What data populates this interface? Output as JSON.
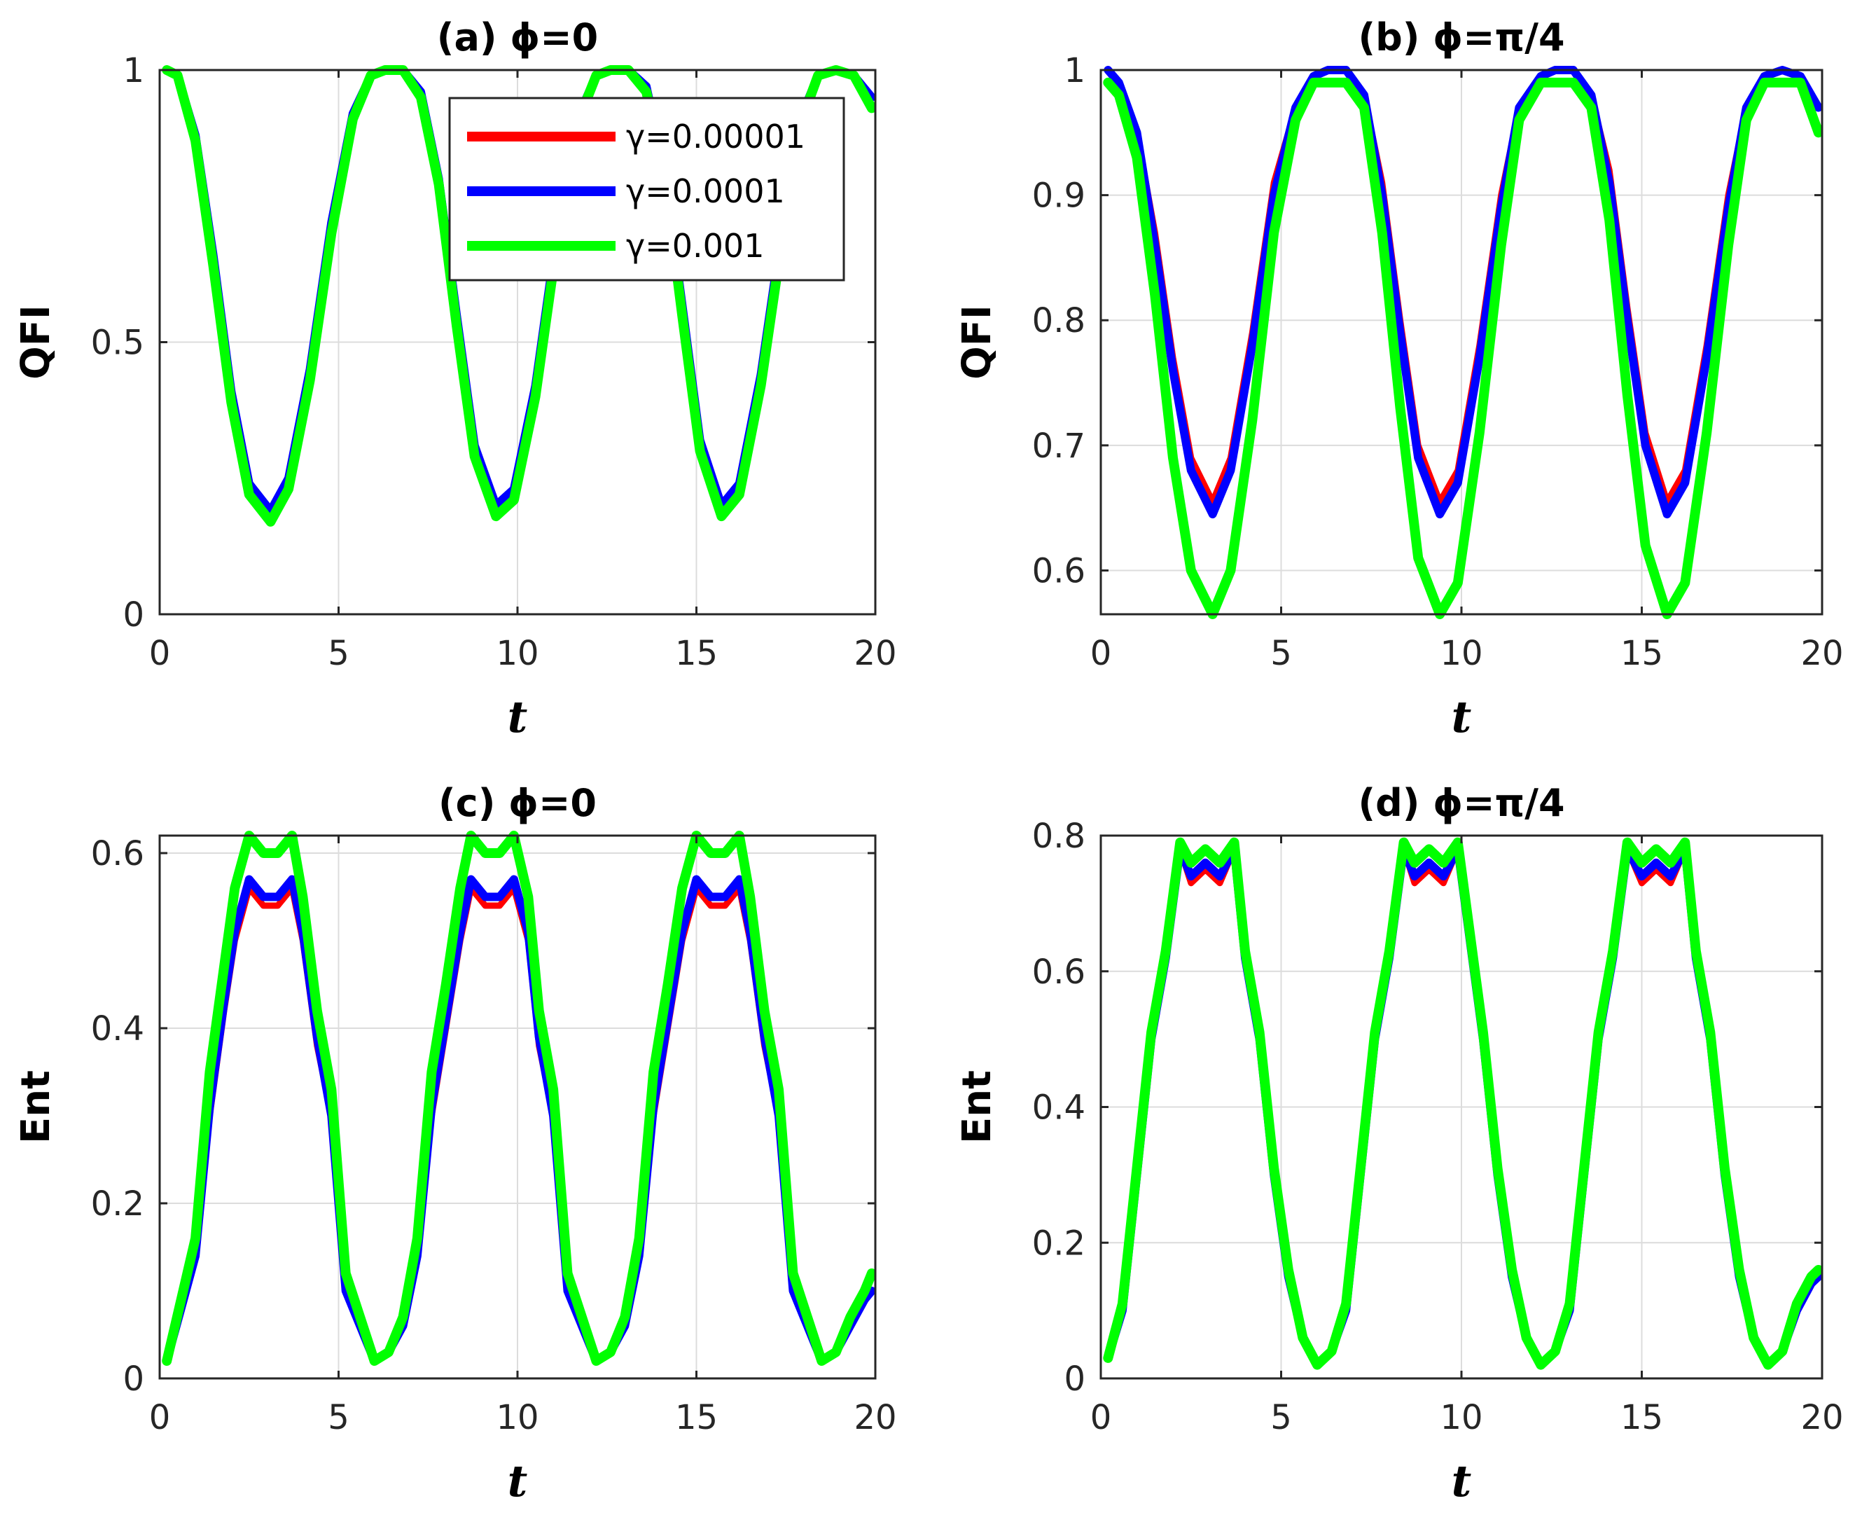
{
  "chart_data": [
    {
      "id": "a",
      "type": "line",
      "title": "(a) ϕ=0",
      "xlabel": "t",
      "ylabel": "QFI",
      "xlim": [
        0,
        20
      ],
      "ylim": [
        0,
        1
      ],
      "xticks": [
        0,
        5,
        10,
        15,
        20
      ],
      "yticks": [
        0,
        0.5,
        1
      ],
      "ytick_labels": [
        "0",
        "0.5",
        "1"
      ],
      "grid": true,
      "legend": true,
      "legend_position": "top-right",
      "x": [
        0.2,
        0.5,
        1.0,
        1.5,
        2.0,
        2.5,
        3.1,
        3.6,
        4.2,
        4.8,
        5.4,
        5.9,
        6.3,
        6.8,
        7.3,
        7.8,
        8.3,
        8.8,
        9.4,
        9.9,
        10.5,
        11.1,
        11.6,
        12.2,
        12.6,
        13.1,
        13.6,
        14.1,
        14.6,
        15.1,
        15.7,
        16.2,
        16.8,
        17.4,
        17.9,
        18.4,
        18.9,
        19.4,
        19.9
      ],
      "series": [
        {
          "name": "γ=0.00001",
          "color": "#ff0000",
          "values": [
            1.0,
            0.99,
            0.88,
            0.66,
            0.41,
            0.24,
            0.19,
            0.25,
            0.45,
            0.72,
            0.92,
            0.99,
            1.0,
            1.0,
            0.96,
            0.8,
            0.55,
            0.31,
            0.2,
            0.23,
            0.42,
            0.7,
            0.9,
            0.99,
            1.0,
            1.0,
            0.97,
            0.82,
            0.57,
            0.32,
            0.2,
            0.24,
            0.44,
            0.71,
            0.91,
            0.99,
            1.0,
            0.99,
            0.95
          ]
        },
        {
          "name": "γ=0.0001",
          "color": "#0000ff",
          "values": [
            1.0,
            0.99,
            0.88,
            0.66,
            0.41,
            0.24,
            0.19,
            0.25,
            0.45,
            0.72,
            0.92,
            0.99,
            1.0,
            1.0,
            0.96,
            0.8,
            0.55,
            0.31,
            0.2,
            0.23,
            0.42,
            0.7,
            0.9,
            0.99,
            1.0,
            1.0,
            0.97,
            0.82,
            0.57,
            0.32,
            0.2,
            0.24,
            0.44,
            0.71,
            0.91,
            0.99,
            1.0,
            0.99,
            0.95
          ]
        },
        {
          "name": "γ=0.001",
          "color": "#00ff00",
          "values": [
            1.0,
            0.99,
            0.87,
            0.64,
            0.39,
            0.22,
            0.17,
            0.23,
            0.43,
            0.7,
            0.91,
            0.99,
            1.0,
            1.0,
            0.95,
            0.79,
            0.53,
            0.29,
            0.18,
            0.21,
            0.4,
            0.68,
            0.89,
            0.99,
            1.0,
            1.0,
            0.96,
            0.81,
            0.55,
            0.3,
            0.18,
            0.22,
            0.42,
            0.69,
            0.9,
            0.99,
            1.0,
            0.99,
            0.93
          ]
        }
      ]
    },
    {
      "id": "b",
      "type": "line",
      "title": "(b) ϕ=π/4",
      "xlabel": "t",
      "ylabel": "QFI",
      "xlim": [
        0,
        20
      ],
      "ylim": [
        0.565,
        1
      ],
      "xticks": [
        0,
        5,
        10,
        15,
        20
      ],
      "yticks": [
        0.6,
        0.7,
        0.8,
        0.9,
        1
      ],
      "ytick_labels": [
        "0.6",
        "0.7",
        "0.8",
        "0.9",
        "1"
      ],
      "grid": true,
      "legend": false,
      "x": [
        0.2,
        0.5,
        1.0,
        1.5,
        2.0,
        2.5,
        3.1,
        3.6,
        4.2,
        4.8,
        5.4,
        5.9,
        6.3,
        6.8,
        7.3,
        7.8,
        8.3,
        8.8,
        9.4,
        9.9,
        10.5,
        11.1,
        11.6,
        12.2,
        12.6,
        13.1,
        13.6,
        14.1,
        14.6,
        15.1,
        15.7,
        16.2,
        16.8,
        17.4,
        17.9,
        18.4,
        18.9,
        19.4,
        19.9
      ],
      "series": [
        {
          "name": "γ=0.00001",
          "color": "#ff0000",
          "values": [
            1.0,
            0.99,
            0.95,
            0.87,
            0.77,
            0.69,
            0.655,
            0.69,
            0.79,
            0.91,
            0.97,
            0.995,
            1.0,
            1.0,
            0.98,
            0.91,
            0.8,
            0.7,
            0.655,
            0.68,
            0.78,
            0.9,
            0.97,
            0.995,
            1.0,
            1.0,
            0.98,
            0.92,
            0.81,
            0.71,
            0.655,
            0.68,
            0.78,
            0.9,
            0.97,
            0.995,
            1.0,
            0.995,
            0.97
          ]
        },
        {
          "name": "γ=0.0001",
          "color": "#0000ff",
          "values": [
            1.0,
            0.99,
            0.95,
            0.86,
            0.76,
            0.68,
            0.645,
            0.68,
            0.78,
            0.9,
            0.97,
            0.995,
            1.0,
            1.0,
            0.98,
            0.9,
            0.79,
            0.69,
            0.645,
            0.67,
            0.77,
            0.89,
            0.97,
            0.995,
            1.0,
            1.0,
            0.98,
            0.91,
            0.8,
            0.7,
            0.645,
            0.67,
            0.77,
            0.89,
            0.97,
            0.995,
            1.0,
            0.995,
            0.97
          ]
        },
        {
          "name": "γ=0.001",
          "color": "#00ff00",
          "values": [
            0.99,
            0.98,
            0.93,
            0.82,
            0.69,
            0.6,
            0.565,
            0.6,
            0.72,
            0.87,
            0.96,
            0.99,
            0.99,
            0.99,
            0.97,
            0.87,
            0.73,
            0.61,
            0.565,
            0.59,
            0.71,
            0.86,
            0.96,
            0.99,
            0.99,
            0.99,
            0.97,
            0.88,
            0.74,
            0.62,
            0.565,
            0.59,
            0.71,
            0.86,
            0.96,
            0.99,
            0.99,
            0.99,
            0.95
          ]
        }
      ]
    },
    {
      "id": "c",
      "type": "line",
      "title": "(c) ϕ=0",
      "xlabel": "t",
      "ylabel": "Ent",
      "xlim": [
        0,
        20
      ],
      "ylim": [
        0,
        0.62
      ],
      "xticks": [
        0,
        5,
        10,
        15,
        20
      ],
      "yticks": [
        0,
        0.2,
        0.4,
        0.6
      ],
      "ytick_labels": [
        "0",
        "0.2",
        "0.4",
        "0.6"
      ],
      "grid": true,
      "legend": false,
      "x": [
        0.2,
        0.6,
        1.0,
        1.4,
        1.8,
        2.1,
        2.5,
        2.9,
        3.3,
        3.7,
        4.0,
        4.4,
        4.8,
        5.2,
        5.6,
        6.0,
        6.4,
        6.8,
        7.2,
        7.6,
        8.0,
        8.4,
        8.7,
        9.1,
        9.5,
        9.9,
        10.3,
        10.6,
        11.0,
        11.4,
        11.8,
        12.2,
        12.6,
        13.0,
        13.4,
        13.8,
        14.2,
        14.6,
        15.0,
        15.4,
        15.8,
        16.2,
        16.5,
        16.9,
        17.3,
        17.7,
        18.1,
        18.5,
        18.9,
        19.3,
        19.7,
        19.9
      ],
      "series": [
        {
          "name": "γ=0.00001",
          "color": "#ff0000",
          "values": [
            0.02,
            0.08,
            0.14,
            0.3,
            0.42,
            0.5,
            0.56,
            0.54,
            0.54,
            0.56,
            0.5,
            0.38,
            0.3,
            0.1,
            0.06,
            0.02,
            0.03,
            0.06,
            0.14,
            0.3,
            0.4,
            0.5,
            0.56,
            0.54,
            0.54,
            0.56,
            0.5,
            0.38,
            0.3,
            0.1,
            0.06,
            0.02,
            0.03,
            0.06,
            0.14,
            0.3,
            0.4,
            0.5,
            0.56,
            0.54,
            0.54,
            0.56,
            0.5,
            0.38,
            0.3,
            0.1,
            0.06,
            0.02,
            0.03,
            0.06,
            0.09,
            0.1
          ]
        },
        {
          "name": "γ=0.0001",
          "color": "#0000ff",
          "values": [
            0.02,
            0.08,
            0.14,
            0.31,
            0.43,
            0.51,
            0.57,
            0.55,
            0.55,
            0.57,
            0.51,
            0.39,
            0.3,
            0.1,
            0.06,
            0.02,
            0.03,
            0.06,
            0.14,
            0.31,
            0.41,
            0.51,
            0.57,
            0.55,
            0.55,
            0.57,
            0.51,
            0.39,
            0.3,
            0.1,
            0.06,
            0.02,
            0.03,
            0.06,
            0.14,
            0.31,
            0.41,
            0.51,
            0.57,
            0.55,
            0.55,
            0.57,
            0.51,
            0.39,
            0.3,
            0.1,
            0.06,
            0.02,
            0.03,
            0.06,
            0.09,
            0.1
          ]
        },
        {
          "name": "γ=0.001",
          "color": "#00ff00",
          "values": [
            0.02,
            0.09,
            0.16,
            0.35,
            0.47,
            0.56,
            0.62,
            0.6,
            0.6,
            0.62,
            0.55,
            0.42,
            0.33,
            0.12,
            0.07,
            0.02,
            0.03,
            0.07,
            0.16,
            0.35,
            0.45,
            0.56,
            0.62,
            0.6,
            0.6,
            0.62,
            0.55,
            0.42,
            0.33,
            0.12,
            0.07,
            0.02,
            0.03,
            0.07,
            0.16,
            0.35,
            0.45,
            0.56,
            0.62,
            0.6,
            0.6,
            0.62,
            0.55,
            0.42,
            0.33,
            0.12,
            0.07,
            0.02,
            0.03,
            0.07,
            0.1,
            0.12
          ]
        }
      ]
    },
    {
      "id": "d",
      "type": "line",
      "title": "(d) ϕ=π/4",
      "xlabel": "t",
      "ylabel": "Ent",
      "xlim": [
        0,
        20
      ],
      "ylim": [
        0,
        0.8
      ],
      "xticks": [
        0,
        5,
        10,
        15,
        20
      ],
      "yticks": [
        0,
        0.2,
        0.4,
        0.6,
        0.8
      ],
      "ytick_labels": [
        "0",
        "0.2",
        "0.4",
        "0.6",
        "0.8"
      ],
      "grid": true,
      "legend": false,
      "x": [
        0.2,
        0.6,
        1.0,
        1.4,
        1.8,
        2.2,
        2.5,
        2.9,
        3.3,
        3.7,
        4.0,
        4.4,
        4.8,
        5.2,
        5.6,
        6.0,
        6.4,
        6.8,
        7.2,
        7.6,
        8.0,
        8.4,
        8.7,
        9.1,
        9.5,
        9.9,
        10.3,
        10.6,
        11.0,
        11.4,
        11.8,
        12.2,
        12.6,
        13.0,
        13.4,
        13.8,
        14.2,
        14.6,
        15.0,
        15.4,
        15.8,
        16.2,
        16.5,
        16.9,
        17.3,
        17.7,
        18.1,
        18.5,
        18.9,
        19.3,
        19.7,
        19.9
      ],
      "series": [
        {
          "name": "γ=0.00001",
          "color": "#ff0000",
          "values": [
            0.03,
            0.1,
            0.3,
            0.5,
            0.62,
            0.78,
            0.73,
            0.75,
            0.73,
            0.78,
            0.62,
            0.5,
            0.3,
            0.15,
            0.06,
            0.02,
            0.04,
            0.1,
            0.3,
            0.5,
            0.62,
            0.78,
            0.73,
            0.75,
            0.73,
            0.78,
            0.62,
            0.5,
            0.3,
            0.15,
            0.06,
            0.02,
            0.04,
            0.1,
            0.3,
            0.5,
            0.62,
            0.78,
            0.73,
            0.75,
            0.73,
            0.78,
            0.62,
            0.5,
            0.3,
            0.15,
            0.06,
            0.02,
            0.04,
            0.1,
            0.14,
            0.15
          ]
        },
        {
          "name": "γ=0.0001",
          "color": "#0000ff",
          "values": [
            0.03,
            0.1,
            0.3,
            0.5,
            0.62,
            0.78,
            0.74,
            0.76,
            0.74,
            0.78,
            0.62,
            0.5,
            0.3,
            0.15,
            0.06,
            0.02,
            0.04,
            0.1,
            0.3,
            0.5,
            0.62,
            0.78,
            0.74,
            0.76,
            0.74,
            0.78,
            0.62,
            0.5,
            0.3,
            0.15,
            0.06,
            0.02,
            0.04,
            0.1,
            0.3,
            0.5,
            0.62,
            0.78,
            0.74,
            0.76,
            0.74,
            0.78,
            0.62,
            0.5,
            0.3,
            0.15,
            0.06,
            0.02,
            0.04,
            0.1,
            0.14,
            0.15
          ]
        },
        {
          "name": "γ=0.001",
          "color": "#00ff00",
          "values": [
            0.03,
            0.11,
            0.31,
            0.51,
            0.63,
            0.79,
            0.76,
            0.78,
            0.76,
            0.79,
            0.63,
            0.51,
            0.31,
            0.16,
            0.06,
            0.02,
            0.04,
            0.11,
            0.31,
            0.51,
            0.63,
            0.79,
            0.76,
            0.78,
            0.76,
            0.79,
            0.63,
            0.51,
            0.31,
            0.16,
            0.06,
            0.02,
            0.04,
            0.11,
            0.31,
            0.51,
            0.63,
            0.79,
            0.76,
            0.78,
            0.76,
            0.79,
            0.63,
            0.51,
            0.31,
            0.16,
            0.06,
            0.02,
            0.04,
            0.11,
            0.15,
            0.16
          ]
        }
      ]
    }
  ]
}
